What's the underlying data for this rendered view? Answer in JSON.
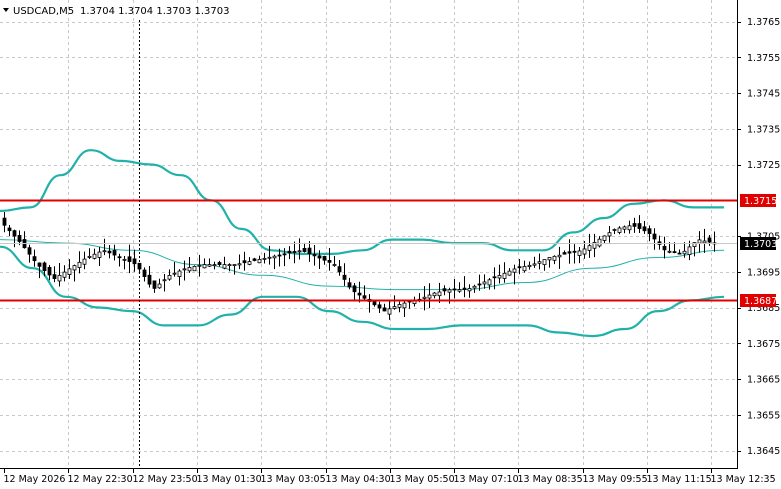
{
  "header": {
    "symbol": "USDCAD,M5",
    "quote": "1.3704 1.3704 1.3703 1.3703",
    "menu_icon": "triangle-down-icon"
  },
  "colors": {
    "background": "#ffffff",
    "grid": "#c8c8c8",
    "candle": "#000000",
    "band": "#20b2aa",
    "level": "#e00000",
    "crosshair": "#000000",
    "current_price_tag": "#000000"
  },
  "chart_data": {
    "type": "candlestick",
    "symbol": "USDCAD",
    "timeframe": "M5",
    "grid": true,
    "y_ticks": [
      "1.3765",
      "1.3755",
      "1.3745",
      "1.3735",
      "1.3725",
      "1.3705",
      "1.3695",
      "1.3685",
      "1.3675",
      "1.3665",
      "1.3655",
      "1.3645"
    ],
    "ylim": [
      1.3641,
      1.3772
    ],
    "x_ticks": [
      "12 May 2026",
      "12 May 22:30",
      "12 May 23:50",
      "13 May 01:30",
      "13 May 03:05",
      "13 May 04:30",
      "13 May 05:50",
      "13 May 07:10",
      "13 May 08:35",
      "13 May 09:55",
      "13 May 11:15",
      "13 May 12:35"
    ],
    "price_levels": [
      {
        "value": 1.3715,
        "label": "1.3715"
      },
      {
        "value": 1.3687,
        "label": "1.3687"
      }
    ],
    "current_price": {
      "value": 1.3703,
      "label": "1.3703"
    },
    "close_path": [
      1.3708,
      1.3703,
      1.3697,
      1.3693,
      1.3696,
      1.3699,
      1.3701,
      1.3699,
      1.3697,
      1.369,
      1.3694,
      1.3696,
      1.3697,
      1.3697,
      1.3697,
      1.3698,
      1.3699,
      1.37,
      1.3701,
      1.3699,
      1.3697,
      1.369,
      1.3687,
      1.3684,
      1.3686,
      1.3687,
      1.3689,
      1.369,
      1.369,
      1.3692,
      1.3694,
      1.3696,
      1.3697,
      1.3699,
      1.37,
      1.3701,
      1.3704,
      1.3707,
      1.3708,
      1.3706,
      1.3701,
      1.37,
      1.3704,
      1.3703
    ],
    "upper_band": [
      1.3712,
      1.3713,
      1.3722,
      1.3729,
      1.3726,
      1.3725,
      1.3722,
      1.3715,
      1.3707,
      1.3701,
      1.37,
      1.37,
      1.3701,
      1.3704,
      1.3704,
      1.3703,
      1.3703,
      1.3701,
      1.3701,
      1.3706,
      1.371,
      1.3714,
      1.3715,
      1.3713,
      1.3713
    ],
    "middle_band": [
      1.3704,
      1.3703,
      1.3701,
      1.3697,
      1.3694,
      1.3691,
      1.369,
      1.369,
      1.3692,
      1.3696,
      1.3699,
      1.3701
    ],
    "lower_band": [
      1.3702,
      1.3696,
      1.3688,
      1.3685,
      1.3684,
      1.368,
      1.368,
      1.3683,
      1.3688,
      1.3688,
      1.3684,
      1.3681,
      1.3679,
      1.3679,
      1.368,
      1.368,
      1.368,
      1.3678,
      1.3677,
      1.3679,
      1.3684,
      1.3687,
      1.3688
    ]
  }
}
